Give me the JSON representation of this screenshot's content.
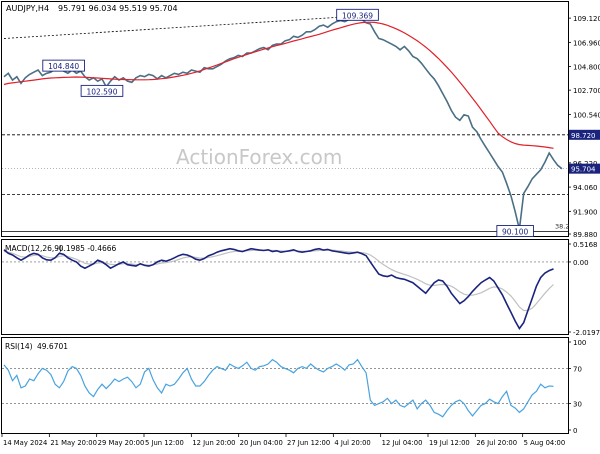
{
  "colors": {
    "price": "#4a6f85",
    "ma": "#e0202a",
    "macd": "#1a237e",
    "signal": "#c0c0c0",
    "rsi": "#4aa3df",
    "grid": "#000000",
    "tag_fill": "#1a237e",
    "tag_text": "#ffffff"
  },
  "header": {
    "symbol": "AUDJPY,H4",
    "ohlc": "95.791 96.034 95.519 95.704"
  },
  "watermark": "ActionForex.com",
  "chart_data": [
    {
      "type": "line",
      "panel": "price",
      "ylim": [
        89.88,
        110.2
      ],
      "y_ticks": [
        "109.120",
        "106.960",
        "104.800",
        "102.700",
        "100.540",
        "98.720",
        "96.220",
        "95.704",
        "94.060",
        "91.900",
        "89.880"
      ],
      "hlines": [
        98.72,
        93.4,
        90.1
      ],
      "current_price": "95.704",
      "marked_levels": [
        "98.720",
        "93.400"
      ],
      "retracement_label": "38.2",
      "annotations": [
        {
          "label": "109.369",
          "x": 83,
          "y": 109.369
        },
        {
          "label": "104.840",
          "x": 14,
          "y": 104.84
        },
        {
          "label": "102.590",
          "x": 23,
          "y": 102.59
        },
        {
          "label": "90.100",
          "x": 120,
          "y": 90.1
        }
      ],
      "series": [
        {
          "kind": "close",
          "values": [
            103.9,
            104.2,
            103.6,
            103.9,
            103.3,
            103.8,
            104.1,
            104.3,
            104.5,
            104.0,
            104.2,
            104.3,
            104.6,
            104.8,
            104.4,
            104.2,
            104.5,
            104.2,
            104.4,
            103.9,
            103.6,
            103.8,
            103.5,
            103.7,
            103.0,
            103.5,
            103.9,
            103.6,
            103.8,
            103.5,
            103.4,
            103.8,
            104.0,
            103.9,
            104.1,
            104.0,
            103.7,
            104.0,
            103.8,
            104.0,
            104.2,
            104.1,
            104.3,
            104.2,
            104.5,
            104.4,
            104.3,
            104.7,
            104.6,
            104.6,
            104.8,
            105.0,
            105.3,
            105.5,
            105.6,
            105.8,
            105.7,
            106.0,
            106.0,
            106.2,
            106.4,
            106.5,
            106.3,
            106.7,
            106.8,
            106.8,
            107.1,
            107.2,
            107.5,
            107.4,
            107.6,
            107.9,
            107.9,
            108.1,
            108.4,
            108.5,
            108.3,
            108.6,
            108.8,
            108.9,
            108.8,
            109.0,
            109.0,
            109.1,
            109.0,
            108.7,
            108.6,
            107.9,
            107.3,
            107.2,
            107.0,
            106.8,
            106.6,
            106.3,
            106.6,
            106.2,
            105.7,
            105.5,
            105.1,
            104.6,
            104.1,
            103.7,
            103.1,
            102.4,
            101.7,
            100.9,
            100.3,
            100.0,
            100.5,
            100.4,
            99.4,
            99.0,
            98.3,
            97.7,
            97.1,
            96.5,
            95.9,
            95.4,
            94.4,
            93.3,
            91.9,
            90.3,
            93.5,
            94.1,
            94.8,
            95.2,
            95.6,
            96.3,
            97.1,
            96.5,
            96.0,
            95.7
          ]
        },
        {
          "kind": "moving-average",
          "values": [
            103.2,
            103.3,
            103.35,
            103.4,
            103.45,
            103.5,
            103.55,
            103.6,
            103.65,
            103.7,
            103.75,
            103.78,
            103.8,
            103.82,
            103.84,
            103.85,
            103.86,
            103.87,
            103.86,
            103.85,
            103.83,
            103.8,
            103.78,
            103.76,
            103.73,
            103.7,
            103.68,
            103.66,
            103.65,
            103.64,
            103.63,
            103.62,
            103.62,
            103.62,
            103.63,
            103.65,
            103.68,
            103.72,
            103.76,
            103.82,
            103.88,
            103.95,
            104.02,
            104.1,
            104.2,
            104.3,
            104.42,
            104.55,
            104.68,
            104.8,
            104.94,
            105.08,
            105.22,
            105.36,
            105.5,
            105.63,
            105.76,
            105.88,
            106.0,
            106.12,
            106.24,
            106.35,
            106.46,
            106.57,
            106.67,
            106.77,
            106.87,
            106.97,
            107.08,
            107.18,
            107.28,
            107.38,
            107.48,
            107.58,
            107.68,
            107.8,
            107.92,
            108.04,
            108.15,
            108.26,
            108.37,
            108.48,
            108.58,
            108.66,
            108.72,
            108.75,
            108.76,
            108.74,
            108.68,
            108.6,
            108.48,
            108.34,
            108.18,
            108.0,
            107.8,
            107.58,
            107.35,
            107.1,
            106.83,
            106.54,
            106.22,
            105.88,
            105.52,
            105.14,
            104.74,
            104.32,
            103.88,
            103.42,
            102.95,
            102.47,
            101.98,
            101.48,
            100.97,
            100.45,
            99.93,
            99.4,
            98.87,
            98.55,
            98.3,
            98.1,
            97.95,
            97.85,
            97.8,
            97.78,
            97.75,
            97.72,
            97.68,
            97.63,
            97.58,
            97.52
          ]
        }
      ],
      "trendline": [
        {
          "x": 0,
          "y": 107.3
        },
        {
          "x": 83,
          "y": 109.3
        }
      ]
    },
    {
      "type": "line",
      "panel": "macd",
      "title": "MACD(12,26,9)",
      "values_text": "-0.1985  -0.4666",
      "ylim": [
        -2.0197,
        0.5168
      ],
      "y_ticks": [
        "0.5168",
        "0.00",
        "-2.0197"
      ],
      "series": [
        {
          "kind": "macd",
          "values": [
            0.35,
            0.25,
            0.2,
            0.12,
            0.05,
            0.12,
            0.2,
            0.25,
            0.22,
            0.12,
            0.06,
            0.05,
            0.12,
            0.25,
            0.22,
            0.12,
            0.05,
            0.0,
            -0.12,
            -0.18,
            -0.12,
            -0.05,
            0.05,
            0.0,
            -0.08,
            -0.18,
            -0.12,
            -0.05,
            0.0,
            -0.08,
            -0.1,
            -0.12,
            -0.05,
            -0.1,
            -0.12,
            -0.08,
            0.0,
            0.05,
            0.02,
            0.06,
            0.12,
            0.18,
            0.22,
            0.2,
            0.15,
            0.08,
            0.05,
            0.1,
            0.18,
            0.22,
            0.28,
            0.32,
            0.35,
            0.38,
            0.36,
            0.32,
            0.3,
            0.34,
            0.38,
            0.36,
            0.34,
            0.33,
            0.35,
            0.3,
            0.32,
            0.28,
            0.3,
            0.32,
            0.35,
            0.3,
            0.28,
            0.3,
            0.32,
            0.36,
            0.38,
            0.34,
            0.36,
            0.32,
            0.3,
            0.28,
            0.26,
            0.24,
            0.26,
            0.28,
            0.24,
            0.18,
            0.0,
            -0.18,
            -0.35,
            -0.4,
            -0.42,
            -0.38,
            -0.45,
            -0.48,
            -0.5,
            -0.55,
            -0.6,
            -0.7,
            -0.8,
            -0.9,
            -0.75,
            -0.6,
            -0.52,
            -0.55,
            -0.7,
            -0.9,
            -1.05,
            -1.2,
            -1.12,
            -1.0,
            -0.85,
            -0.72,
            -0.6,
            -0.52,
            -0.45,
            -0.55,
            -0.75,
            -0.95,
            -1.2,
            -1.45,
            -1.7,
            -1.92,
            -1.75,
            -1.4,
            -1.05,
            -0.7,
            -0.45,
            -0.32,
            -0.25,
            -0.2
          ]
        },
        {
          "kind": "signal",
          "values": [
            0.3,
            0.28,
            0.25,
            0.2,
            0.15,
            0.14,
            0.16,
            0.19,
            0.2,
            0.18,
            0.14,
            0.12,
            0.12,
            0.16,
            0.18,
            0.16,
            0.12,
            0.08,
            0.02,
            -0.04,
            -0.06,
            -0.06,
            -0.03,
            -0.02,
            -0.03,
            -0.07,
            -0.08,
            -0.07,
            -0.05,
            -0.05,
            -0.06,
            -0.08,
            -0.07,
            -0.08,
            -0.09,
            -0.08,
            -0.06,
            -0.03,
            -0.02,
            0.0,
            0.03,
            0.07,
            0.11,
            0.14,
            0.15,
            0.13,
            0.11,
            0.11,
            0.13,
            0.15,
            0.18,
            0.21,
            0.25,
            0.28,
            0.3,
            0.31,
            0.31,
            0.32,
            0.33,
            0.34,
            0.34,
            0.34,
            0.34,
            0.33,
            0.33,
            0.32,
            0.31,
            0.31,
            0.32,
            0.32,
            0.31,
            0.31,
            0.31,
            0.32,
            0.33,
            0.34,
            0.34,
            0.34,
            0.33,
            0.32,
            0.3,
            0.29,
            0.28,
            0.28,
            0.27,
            0.25,
            0.2,
            0.12,
            0.02,
            -0.07,
            -0.15,
            -0.22,
            -0.28,
            -0.32,
            -0.36,
            -0.4,
            -0.45,
            -0.5,
            -0.56,
            -0.63,
            -0.67,
            -0.68,
            -0.66,
            -0.65,
            -0.66,
            -0.7,
            -0.77,
            -0.86,
            -0.93,
            -0.96,
            -0.96,
            -0.93,
            -0.89,
            -0.83,
            -0.76,
            -0.72,
            -0.73,
            -0.78,
            -0.87,
            -0.98,
            -1.13,
            -1.3,
            -1.4,
            -1.4,
            -1.33,
            -1.2,
            -1.05,
            -0.9,
            -0.77,
            -0.65
          ]
        }
      ]
    },
    {
      "type": "line",
      "panel": "rsi",
      "title": "RSI(14)",
      "values_text": "49.6701",
      "ylim": [
        0,
        100
      ],
      "y_ticks": [
        "100",
        "70",
        "30",
        "0"
      ],
      "levels": [
        70,
        30
      ],
      "series": [
        {
          "kind": "rsi",
          "values": [
            74,
            68,
            56,
            62,
            48,
            50,
            58,
            56,
            64,
            70,
            68,
            63,
            52,
            48,
            55,
            67,
            72,
            70,
            62,
            50,
            42,
            38,
            46,
            52,
            47,
            52,
            58,
            55,
            58,
            60,
            55,
            48,
            52,
            66,
            70,
            57,
            48,
            42,
            52,
            50,
            52,
            58,
            65,
            70,
            58,
            50,
            50,
            55,
            62,
            68,
            72,
            70,
            68,
            75,
            72,
            70,
            73,
            77,
            70,
            68,
            72,
            73,
            75,
            80,
            77,
            72,
            70,
            68,
            65,
            70,
            72,
            70,
            75,
            71,
            68,
            66,
            70,
            72,
            75,
            72,
            68,
            74,
            75,
            80,
            72,
            65,
            34,
            28,
            30,
            32,
            36,
            30,
            34,
            28,
            26,
            30,
            34,
            24,
            30,
            34,
            28,
            20,
            18,
            15,
            22,
            28,
            32,
            34,
            30,
            22,
            16,
            22,
            28,
            30,
            35,
            32,
            30,
            38,
            44,
            28,
            25,
            20,
            24,
            32,
            40,
            44,
            52,
            48,
            50,
            49.67
          ]
        }
      ]
    }
  ],
  "x_axis": {
    "labels": [
      "14 May 2024",
      "21 May 20:00",
      "29 May 20:00",
      "5 Jun 12:00",
      "12 Jun 20:00",
      "20 Jun 04:00",
      "27 Jun 12:00",
      "4 Jul 20:00",
      "12 Jul 04:00",
      "19 Jul 12:00",
      "26 Jul 20:00",
      "5 Aug 04:00"
    ]
  }
}
